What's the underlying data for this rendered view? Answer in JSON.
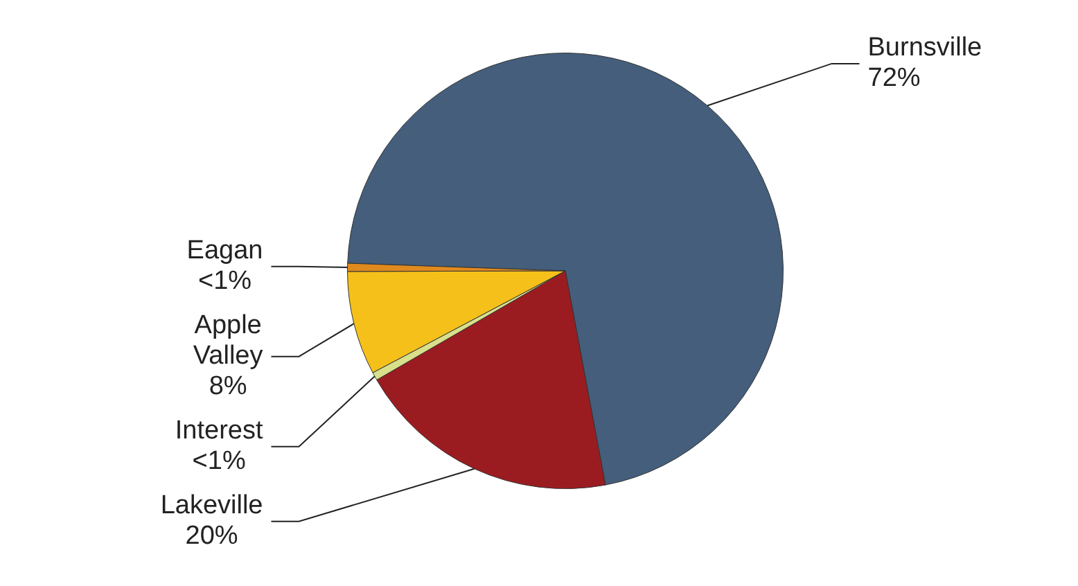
{
  "chart_data": {
    "type": "pie",
    "categories": [
      "Burnsville",
      "Lakeville",
      "Interest",
      "Apple Valley",
      "Eagan"
    ],
    "values": [
      71.5,
      19.6,
      0.6,
      7.7,
      0.6
    ],
    "value_labels": [
      "72%",
      "20%",
      "<1%",
      "8%",
      "<1%"
    ],
    "colors": [
      "#445e7c",
      "#9b1c20",
      "#d9e08a",
      "#f5c01a",
      "#e08a1e"
    ],
    "legend": false
  }
}
